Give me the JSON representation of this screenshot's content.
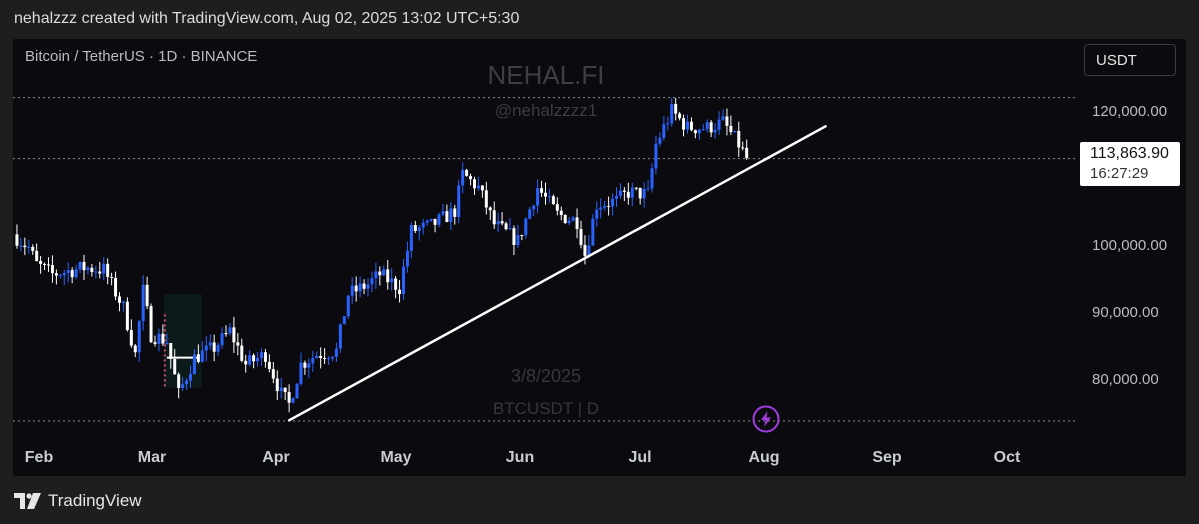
{
  "header": {
    "attribution": "nehalzzz created with TradingView.com, Aug 02, 2025 13:02 UTC+5:30"
  },
  "chart_header": {
    "symbol_title": "Bitcoin / TetherUS · 1D · BINANCE",
    "currency": "USDT"
  },
  "watermark": {
    "name": "NEHAL.FI",
    "handle": "@nehalzzzz1",
    "date": "3/8/2025",
    "symbol": "BTCUSDT | D"
  },
  "price_label": {
    "price": "113,863.90",
    "countdown": "16:27:29"
  },
  "footer": {
    "brand": "TradingView"
  },
  "colors": {
    "up": "#2962ff",
    "down": "#ffffff",
    "background": "#0b0b0f",
    "trendline": "#ffffff",
    "bolt": "#a03ce0"
  },
  "chart_data": {
    "type": "candlestick",
    "symbol": "BTCUSDT",
    "interval": "1D",
    "y_ticks": [
      "120,000.00",
      "100,000.00",
      "90,000.00",
      "80,000.00"
    ],
    "y_tick_values": [
      120000,
      100000,
      90000,
      80000
    ],
    "x_ticks": [
      "Feb",
      "Mar",
      "Apr",
      "May",
      "Jun",
      "Jul",
      "Aug",
      "Sep",
      "Oct"
    ],
    "x_tick_dates": [
      "2025-02-01",
      "2025-03-01",
      "2025-04-01",
      "2025-05-01",
      "2025-06-01",
      "2025-07-01",
      "2025-08-01",
      "2025-09-01",
      "2025-10-01"
    ],
    "ylim": [
      74500,
      124000
    ],
    "xlim": [
      "2025-01-28",
      "2025-10-25"
    ],
    "last_price": 113863.9,
    "reference_levels": [
      123000,
      113863.9,
      74500
    ],
    "close_anchors": [
      [
        "2025-01-28",
        102500
      ],
      [
        "2025-02-01",
        100500
      ],
      [
        "2025-02-03",
        98000
      ],
      [
        "2025-02-07",
        96500
      ],
      [
        "2025-02-15",
        97500
      ],
      [
        "2025-02-20",
        97200
      ],
      [
        "2025-02-25",
        91500
      ],
      [
        "2025-02-28",
        84500
      ],
      [
        "2025-03-02",
        94000
      ],
      [
        "2025-03-04",
        87500
      ],
      [
        "2025-03-08",
        86500
      ],
      [
        "2025-03-11",
        78500
      ],
      [
        "2025-03-15",
        84000
      ],
      [
        "2025-03-20",
        85500
      ],
      [
        "2025-03-24",
        88000
      ],
      [
        "2025-03-28",
        83000
      ],
      [
        "2025-04-02",
        84500
      ],
      [
        "2025-04-06",
        78500
      ],
      [
        "2025-04-08",
        77000
      ],
      [
        "2025-04-11",
        83000
      ],
      [
        "2025-04-15",
        84500
      ],
      [
        "2025-04-20",
        85000
      ],
      [
        "2025-04-23",
        93500
      ],
      [
        "2025-04-28",
        95000
      ],
      [
        "2025-05-01",
        96500
      ],
      [
        "2025-05-06",
        94500
      ],
      [
        "2025-05-09",
        103000
      ],
      [
        "2025-05-14",
        103800
      ],
      [
        "2025-05-20",
        106000
      ],
      [
        "2025-05-22",
        111500
      ],
      [
        "2025-05-26",
        109500
      ],
      [
        "2025-05-30",
        104000
      ],
      [
        "2025-06-05",
        101500
      ],
      [
        "2025-06-10",
        109500
      ],
      [
        "2025-06-15",
        105500
      ],
      [
        "2025-06-20",
        104500
      ],
      [
        "2025-06-22",
        99500
      ],
      [
        "2025-06-25",
        107000
      ],
      [
        "2025-06-30",
        107500
      ],
      [
        "2025-07-03",
        108800
      ],
      [
        "2025-07-08",
        108500
      ],
      [
        "2025-07-10",
        116000
      ],
      [
        "2025-07-14",
        121000
      ],
      [
        "2025-07-18",
        118500
      ],
      [
        "2025-07-23",
        118500
      ],
      [
        "2025-07-27",
        119300
      ],
      [
        "2025-07-31",
        116000
      ],
      [
        "2025-08-02",
        113864
      ]
    ],
    "trendline": {
      "start": [
        "2025-04-08",
        74600
      ],
      "end": [
        "2025-08-22",
        118700
      ]
    },
    "annotation": {
      "date": "2025-03-08",
      "low": 79500,
      "high": 93500,
      "mark": 84000
    }
  }
}
